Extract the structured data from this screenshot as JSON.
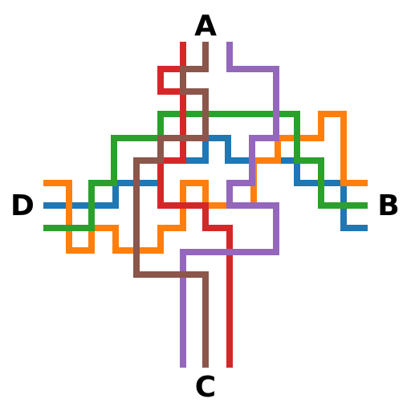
{
  "terminals": {
    "top": "A",
    "right": "B",
    "bottom": "C",
    "left": "D"
  },
  "wires": [
    {
      "id": "blue",
      "color": "#1f77b4"
    },
    {
      "id": "orange",
      "color": "#ff7f0e"
    },
    {
      "id": "green",
      "color": "#2ca02c"
    },
    {
      "id": "red",
      "color": "#d62728"
    },
    {
      "id": "purple",
      "color": "#9467bd"
    },
    {
      "id": "brown",
      "color": "#8c564b"
    }
  ]
}
